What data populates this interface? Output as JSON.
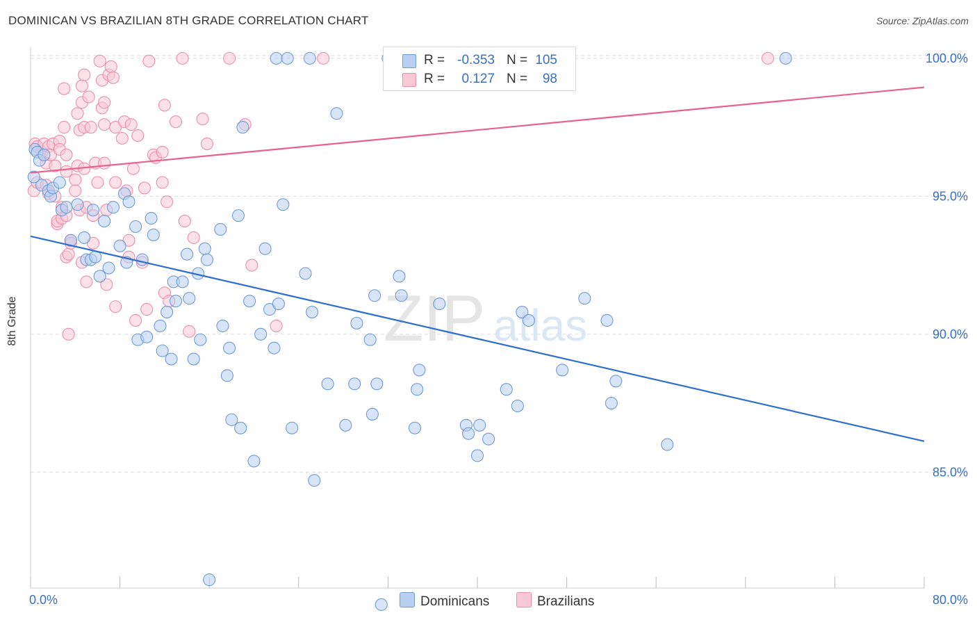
{
  "header": {
    "title": "DOMINICAN VS BRAZILIAN 8TH GRADE CORRELATION CHART",
    "source": "Source: ZipAtlas.com"
  },
  "legend": {
    "rows": [
      {
        "r_label": "R =",
        "r_value": "-0.353",
        "n_label": "N =",
        "n_value": "105"
      },
      {
        "r_label": "R =",
        "r_value": "0.127",
        "n_label": "N =",
        "n_value": "98"
      }
    ]
  },
  "bottom_legend": {
    "items": [
      {
        "label": "Dominicans"
      },
      {
        "label": "Brazilians"
      }
    ]
  },
  "watermark": {
    "big": "ZIP",
    "small": "atlas"
  },
  "colors": {
    "dominicans_fill": "#b8d0f2",
    "dominicans_stroke": "#6f9ad8",
    "dominicans_line": "#2e6fce",
    "brazilians_fill": "#f9c8d6",
    "brazilians_stroke": "#ec8fab",
    "brazilians_line": "#e8628c",
    "axis_text": "#3a6ec7",
    "grid": "#dddddd"
  },
  "chart_data": {
    "type": "scatter",
    "title": "DOMINICAN VS BRAZILIAN 8TH GRADE CORRELATION CHART",
    "xlabel": "",
    "ylabel": "8th Grade",
    "xlim": [
      0,
      80
    ],
    "ylim": [
      80.8,
      100.4
    ],
    "x_tick_labels": [
      "0.0%",
      "80.0%"
    ],
    "y_ticks": [
      85,
      90,
      95,
      100
    ],
    "y_tick_labels": [
      "85.0%",
      "90.0%",
      "95.0%",
      "100.0%"
    ],
    "grid": "horizontal dashed",
    "legend_position": "top-center",
    "series": [
      {
        "name": "Dominicans",
        "r": -0.353,
        "n": 105,
        "trend": {
          "x": [
            0,
            80
          ],
          "y": [
            93.55,
            86.12
          ]
        },
        "points": [
          [
            0.4,
            96.7
          ],
          [
            0.6,
            96.6
          ],
          [
            0.8,
            96.3
          ],
          [
            1.0,
            95.4
          ],
          [
            1.2,
            96.5
          ],
          [
            1.6,
            95.2
          ],
          [
            1.8,
            95.0
          ],
          [
            2.0,
            95.3
          ],
          [
            2.6,
            95.5
          ],
          [
            2.8,
            94.5
          ],
          [
            3.2,
            94.6
          ],
          [
            3.6,
            93.4
          ],
          [
            4.2,
            94.7
          ],
          [
            4.8,
            93.5
          ],
          [
            5.0,
            92.7
          ],
          [
            5.4,
            92.7
          ],
          [
            5.8,
            92.8
          ],
          [
            5.6,
            94.5
          ],
          [
            6.2,
            92.1
          ],
          [
            6.6,
            94.1
          ],
          [
            7.0,
            92.4
          ],
          [
            7.4,
            94.6
          ],
          [
            8.0,
            93.2
          ],
          [
            8.4,
            95.1
          ],
          [
            8.6,
            92.6
          ],
          [
            8.8,
            94.8
          ],
          [
            9.4,
            93.9
          ],
          [
            9.6,
            89.8
          ],
          [
            10.0,
            92.7
          ],
          [
            10.4,
            89.9
          ],
          [
            10.8,
            94.2
          ],
          [
            11.0,
            93.6
          ],
          [
            11.6,
            90.3
          ],
          [
            11.8,
            89.4
          ],
          [
            12.2,
            90.8
          ],
          [
            12.6,
            89.1
          ],
          [
            12.8,
            91.9
          ],
          [
            13.0,
            91.2
          ],
          [
            13.6,
            91.9
          ],
          [
            14.0,
            92.9
          ],
          [
            14.2,
            91.3
          ],
          [
            14.6,
            89.1
          ],
          [
            15.0,
            92.2
          ],
          [
            15.2,
            89.8
          ],
          [
            15.6,
            93.1
          ],
          [
            15.8,
            92.7
          ],
          [
            16.0,
            81.1
          ],
          [
            17.0,
            93.8
          ],
          [
            17.2,
            90.3
          ],
          [
            17.6,
            88.5
          ],
          [
            17.8,
            89.5
          ],
          [
            18.0,
            86.9
          ],
          [
            18.6,
            94.3
          ],
          [
            18.8,
            86.6
          ],
          [
            19.0,
            97.5
          ],
          [
            19.6,
            91.2
          ],
          [
            20.0,
            85.4
          ],
          [
            20.6,
            90.0
          ],
          [
            21.0,
            93.1
          ],
          [
            21.4,
            90.9
          ],
          [
            21.8,
            89.5
          ],
          [
            22.0,
            100.0
          ],
          [
            22.2,
            91.1
          ],
          [
            22.6,
            94.7
          ],
          [
            23.0,
            100.0
          ],
          [
            23.4,
            86.6
          ],
          [
            24.6,
            92.2
          ],
          [
            25.0,
            100.0
          ],
          [
            25.2,
            90.8
          ],
          [
            25.4,
            84.7
          ],
          [
            26.6,
            88.2
          ],
          [
            27.4,
            98.0
          ],
          [
            28.2,
            86.7
          ],
          [
            29.0,
            88.2
          ],
          [
            29.2,
            90.4
          ],
          [
            30.4,
            89.8
          ],
          [
            30.6,
            87.1
          ],
          [
            30.8,
            91.4
          ],
          [
            31.0,
            88.2
          ],
          [
            31.4,
            80.2
          ],
          [
            32.0,
            100.0
          ],
          [
            33.0,
            92.1
          ],
          [
            33.2,
            91.4
          ],
          [
            34.4,
            86.6
          ],
          [
            34.6,
            88.0
          ],
          [
            34.8,
            88.7
          ],
          [
            36.6,
            91.1
          ],
          [
            39.0,
            86.7
          ],
          [
            39.2,
            86.4
          ],
          [
            40.0,
            85.6
          ],
          [
            40.2,
            86.7
          ],
          [
            41.0,
            86.2
          ],
          [
            42.6,
            88.0
          ],
          [
            43.6,
            87.4
          ],
          [
            44.0,
            90.8
          ],
          [
            44.6,
            90.5
          ],
          [
            45.6,
            100.0
          ],
          [
            47.6,
            88.7
          ],
          [
            49.6,
            91.3
          ],
          [
            51.6,
            90.5
          ],
          [
            52.0,
            87.5
          ],
          [
            52.4,
            88.3
          ],
          [
            57.0,
            86.0
          ],
          [
            67.6,
            100.0
          ],
          [
            0.3,
            95.7
          ]
        ]
      },
      {
        "name": "Brazilians",
        "r": 0.127,
        "n": 98,
        "trend": {
          "x": [
            0,
            80
          ],
          "y": [
            95.85,
            98.95
          ]
        },
        "points": [
          [
            0.3,
            95.2
          ],
          [
            0.4,
            96.9
          ],
          [
            0.6,
            96.8
          ],
          [
            0.6,
            95.5
          ],
          [
            1.0,
            96.6
          ],
          [
            1.2,
            96.9
          ],
          [
            1.4,
            96.2
          ],
          [
            1.4,
            95.4
          ],
          [
            1.6,
            96.8
          ],
          [
            1.6,
            95.1
          ],
          [
            1.8,
            96.5
          ],
          [
            2.0,
            96.9
          ],
          [
            2.2,
            96.1
          ],
          [
            2.2,
            95.0
          ],
          [
            2.4,
            94.0
          ],
          [
            2.4,
            94.1
          ],
          [
            2.6,
            97.0
          ],
          [
            2.6,
            96.7
          ],
          [
            2.8,
            94.6
          ],
          [
            2.8,
            94.2
          ],
          [
            3.0,
            98.9
          ],
          [
            3.0,
            97.5
          ],
          [
            3.2,
            96.5
          ],
          [
            3.2,
            95.9
          ],
          [
            3.2,
            94.3
          ],
          [
            3.2,
            92.8
          ],
          [
            3.4,
            90.0
          ],
          [
            3.4,
            92.9
          ],
          [
            3.6,
            93.4
          ],
          [
            3.6,
            93.3
          ],
          [
            4.0,
            95.6
          ],
          [
            4.0,
            95.2
          ],
          [
            4.2,
            98.0
          ],
          [
            4.2,
            96.1
          ],
          [
            4.4,
            97.4
          ],
          [
            4.4,
            94.5
          ],
          [
            4.6,
            99.0
          ],
          [
            4.6,
            98.4
          ],
          [
            4.6,
            92.6
          ],
          [
            4.8,
            99.4
          ],
          [
            4.8,
            97.5
          ],
          [
            4.8,
            96.0
          ],
          [
            5.0,
            91.9
          ],
          [
            5.0,
            94.6
          ],
          [
            5.2,
            98.6
          ],
          [
            5.4,
            97.5
          ],
          [
            5.6,
            93.3
          ],
          [
            5.6,
            94.3
          ],
          [
            5.8,
            96.2
          ],
          [
            6.0,
            95.5
          ],
          [
            6.2,
            99.9
          ],
          [
            6.4,
            99.2
          ],
          [
            6.4,
            98.2
          ],
          [
            6.6,
            98.4
          ],
          [
            6.6,
            97.6
          ],
          [
            6.6,
            96.2
          ],
          [
            6.8,
            91.8
          ],
          [
            6.8,
            94.5
          ],
          [
            7.0,
            99.4
          ],
          [
            7.2,
            99.7
          ],
          [
            7.4,
            99.3
          ],
          [
            7.6,
            97.5
          ],
          [
            7.6,
            95.5
          ],
          [
            7.6,
            91.0
          ],
          [
            8.2,
            97.1
          ],
          [
            8.4,
            97.7
          ],
          [
            8.6,
            95.2
          ],
          [
            8.8,
            93.4
          ],
          [
            8.8,
            92.8
          ],
          [
            9.0,
            97.6
          ],
          [
            9.2,
            96.0
          ],
          [
            9.4,
            90.5
          ],
          [
            9.6,
            97.2
          ],
          [
            10.0,
            92.6
          ],
          [
            10.2,
            95.3
          ],
          [
            10.4,
            90.9
          ],
          [
            10.6,
            99.9
          ],
          [
            11.0,
            96.5
          ],
          [
            11.2,
            96.4
          ],
          [
            11.8,
            96.6
          ],
          [
            11.8,
            95.5
          ],
          [
            12.0,
            98.3
          ],
          [
            12.0,
            91.5
          ],
          [
            12.2,
            94.8
          ],
          [
            12.4,
            91.2
          ],
          [
            13.0,
            97.7
          ],
          [
            13.6,
            100.0
          ],
          [
            13.8,
            94.1
          ],
          [
            14.2,
            90.1
          ],
          [
            14.6,
            93.5
          ],
          [
            15.4,
            97.8
          ],
          [
            15.8,
            96.9
          ],
          [
            17.8,
            100.0
          ],
          [
            19.2,
            97.6
          ],
          [
            19.8,
            92.5
          ],
          [
            22.0,
            90.3
          ],
          [
            26.2,
            100.0
          ],
          [
            66.0,
            100.0
          ]
        ]
      }
    ]
  }
}
